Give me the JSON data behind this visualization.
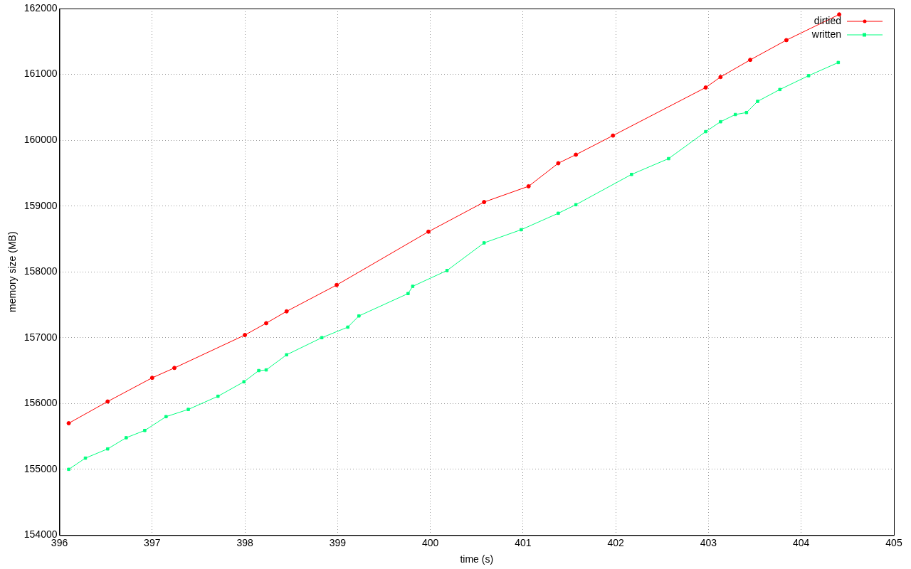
{
  "chart_data": {
    "type": "line",
    "xlabel": "time (s)",
    "ylabel": "memory size (MB)",
    "xlim": [
      396,
      405
    ],
    "xticks": [
      396,
      397,
      398,
      399,
      400,
      401,
      402,
      403,
      404,
      405
    ],
    "ylim": [
      154000,
      162000
    ],
    "yticks": [
      154000,
      155000,
      156000,
      157000,
      158000,
      159000,
      160000,
      161000,
      162000
    ],
    "grid": true,
    "legend": "top right",
    "line_style": "solid",
    "series": [
      {
        "name": "dirtied",
        "color": "#ff0000",
        "marker": "circle",
        "x": [
          396.1,
          396.52,
          397.0,
          397.24,
          398.0,
          398.23,
          398.45,
          398.99,
          399.98,
          400.58,
          401.06,
          401.38,
          401.57,
          401.97,
          402.97,
          403.13,
          403.45,
          403.84,
          404.41
        ],
        "values": [
          155700,
          156030,
          156390,
          156540,
          157040,
          157220,
          157400,
          157800,
          158610,
          159060,
          159300,
          159650,
          159780,
          160070,
          160800,
          160960,
          161220,
          161520,
          161910
        ]
      },
      {
        "name": "written",
        "color": "#00ff7f",
        "marker": "square",
        "x": [
          396.1,
          396.28,
          396.52,
          396.72,
          396.92,
          397.15,
          397.39,
          397.71,
          397.99,
          398.15,
          398.23,
          398.45,
          398.83,
          399.11,
          399.23,
          399.76,
          399.81,
          400.18,
          400.58,
          400.98,
          401.38,
          401.57,
          402.17,
          402.57,
          402.97,
          403.13,
          403.29,
          403.41,
          403.53,
          403.77,
          404.08,
          404.4
        ],
        "values": [
          155000,
          155170,
          155310,
          155480,
          155590,
          155800,
          155910,
          156110,
          156330,
          156500,
          156510,
          156740,
          157000,
          157160,
          157330,
          157670,
          157780,
          158020,
          158440,
          158640,
          158890,
          159020,
          159480,
          159720,
          160130,
          160280,
          160390,
          160420,
          160590,
          160770,
          160980,
          161180
        ]
      }
    ]
  }
}
